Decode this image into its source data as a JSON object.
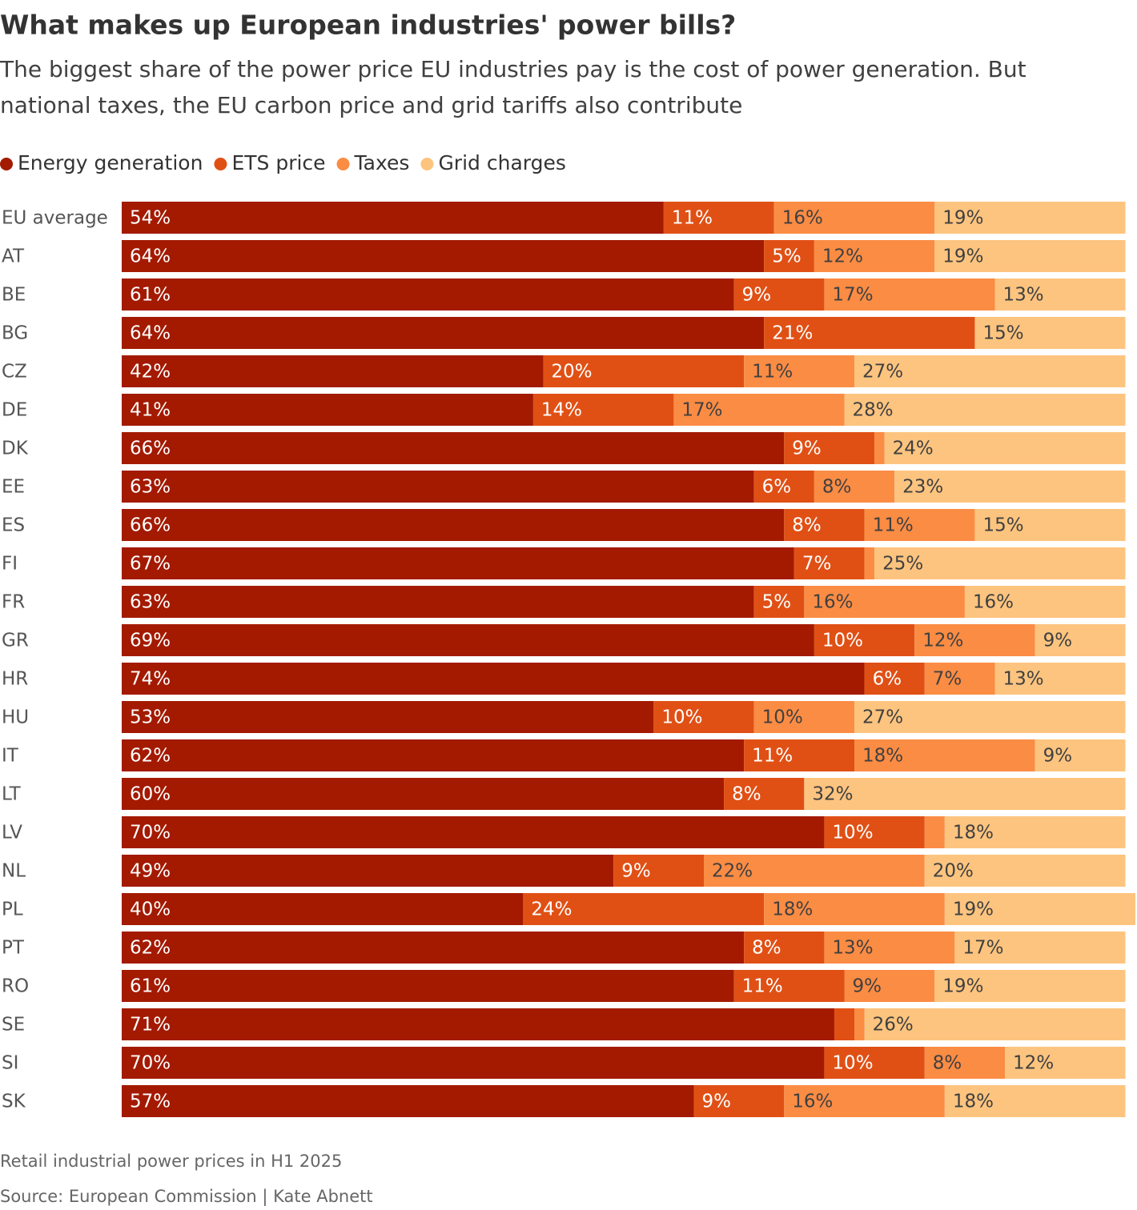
{
  "chart_data": {
    "type": "stacked-bar-horizontal",
    "title": "What makes up European industries' power bills?",
    "subtitle": [
      "The biggest share of the power price EU industries pay is the cost of power generation. But",
      "national taxes, the EU carbon price and grid tariffs also contribute"
    ],
    "notes": [
      "Retail industrial power prices in H1 2025",
      "Source: European Commission | Kate Abnett"
    ],
    "xlim": [
      0,
      101
    ],
    "categories": [
      "EU average",
      "AT",
      "BE",
      "BG",
      "CZ",
      "DE",
      "DK",
      "EE",
      "ES",
      "FI",
      "FR",
      "GR",
      "HR",
      "HU",
      "IT",
      "LT",
      "LV",
      "NL",
      "PL",
      "PT",
      "RO",
      "SE",
      "SI",
      "SK"
    ],
    "series": [
      {
        "name": "Energy generation",
        "color": "#a31a00",
        "values": [
          54,
          64,
          61,
          64,
          42,
          41,
          66,
          63,
          66,
          67,
          63,
          69,
          74,
          53,
          62,
          60,
          70,
          49,
          40,
          62,
          61,
          71,
          70,
          57
        ],
        "value_labels": [
          "54%",
          "64%",
          "61%",
          "64%",
          "42%",
          "41%",
          "66%",
          "63%",
          "66%",
          "67%",
          "63%",
          "69%",
          "74%",
          "53%",
          "62%",
          "60%",
          "70%",
          "49%",
          "40%",
          "62%",
          "61%",
          "71%",
          "70%",
          "57%"
        ]
      },
      {
        "name": "ETS price",
        "color": "#e05015",
        "values": [
          11,
          5,
          9,
          21,
          20,
          14,
          9,
          6,
          8,
          7,
          5,
          10,
          6,
          10,
          11,
          8,
          10,
          9,
          24,
          8,
          11,
          2,
          10,
          9
        ],
        "value_labels": [
          "11%",
          "5%",
          "9%",
          "21%",
          "20%",
          "14%",
          "9%",
          "6%",
          "8%",
          "7%",
          "5%",
          "10%",
          "6%",
          "10%",
          "11%",
          "8%",
          "10%",
          "9%",
          "24%",
          "8%",
          "11%",
          null,
          "10%",
          "9%"
        ]
      },
      {
        "name": "Taxes",
        "color": "#fb8c44",
        "values": [
          16,
          12,
          17,
          0,
          11,
          17,
          1,
          8,
          11,
          1,
          16,
          12,
          7,
          10,
          18,
          0,
          2,
          22,
          18,
          13,
          9,
          1,
          8,
          16
        ],
        "value_labels": [
          "16%",
          "12%",
          "17%",
          null,
          "11%",
          "17%",
          null,
          "8%",
          "11%",
          null,
          "16%",
          "12%",
          "7%",
          "10%",
          "18%",
          null,
          null,
          "22%",
          "18%",
          "13%",
          "9%",
          null,
          "8%",
          "16%"
        ]
      },
      {
        "name": "Grid charges",
        "color": "#fdc47f",
        "values": [
          19,
          19,
          13,
          15,
          27,
          28,
          24,
          23,
          15,
          25,
          16,
          9,
          13,
          27,
          9,
          32,
          18,
          20,
          19,
          17,
          19,
          26,
          12,
          18
        ],
        "value_labels": [
          "19%",
          "19%",
          "13%",
          "15%",
          "27%",
          "28%",
          "24%",
          "23%",
          "15%",
          "25%",
          "16%",
          "9%",
          "13%",
          "27%",
          "9%",
          "32%",
          "18%",
          "20%",
          "19%",
          "17%",
          "19%",
          "26%",
          "12%",
          "18%"
        ]
      }
    ]
  }
}
